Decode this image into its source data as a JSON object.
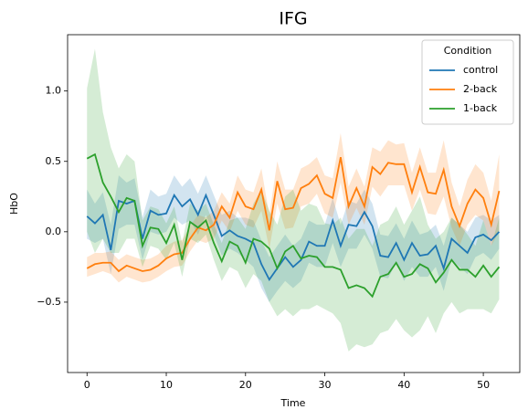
{
  "chart_data": {
    "type": "line",
    "title": "IFG",
    "xlabel": "Time",
    "ylabel": "HbO",
    "legend_title": "Condition",
    "legend": "upper right",
    "band_opacity": 0.2,
    "xlim": [
      -2.45,
      54.6
    ],
    "ylim": [
      -1.0,
      1.4
    ],
    "xticks": [
      0,
      10,
      20,
      30,
      40,
      50
    ],
    "yticks": [
      {
        "value": -0.5,
        "label": "−0.5"
      },
      {
        "value": 0.0,
        "label": "0.0"
      },
      0.5,
      {
        "value": 1.0,
        "label": "1.0"
      }
    ],
    "x": [
      0,
      1,
      2,
      3,
      4,
      5,
      6,
      7,
      8,
      9,
      10,
      11,
      12,
      13,
      14,
      15,
      16,
      17,
      18,
      19,
      20,
      21,
      22,
      23,
      24,
      25,
      26,
      27,
      28,
      29,
      30,
      31,
      32,
      33,
      34,
      35,
      36,
      37,
      38,
      39,
      40,
      41,
      42,
      43,
      44,
      45,
      46,
      47,
      48,
      49,
      50,
      51,
      52
    ],
    "series": [
      {
        "name": "control",
        "color": "#1f77b4",
        "values": [
          0.11,
          0.06,
          0.12,
          -0.13,
          0.22,
          0.2,
          0.22,
          -0.05,
          0.15,
          0.12,
          0.13,
          0.26,
          0.18,
          0.23,
          0.12,
          0.26,
          0.12,
          -0.03,
          0.01,
          -0.03,
          -0.05,
          -0.08,
          -0.23,
          -0.34,
          -0.26,
          -0.18,
          -0.25,
          -0.2,
          -0.07,
          -0.1,
          -0.1,
          0.08,
          -0.1,
          0.05,
          0.04,
          0.14,
          0.04,
          -0.17,
          -0.18,
          -0.08,
          -0.2,
          -0.08,
          -0.17,
          -0.16,
          -0.1,
          -0.26,
          -0.05,
          -0.1,
          -0.15,
          -0.04,
          -0.02,
          -0.06,
          0.0
        ],
        "lower": [
          -0.05,
          -0.08,
          -0.05,
          -0.3,
          0.02,
          0.05,
          0.05,
          -0.2,
          0.0,
          -0.02,
          0.0,
          0.1,
          0.05,
          0.08,
          -0.02,
          0.12,
          -0.02,
          -0.17,
          -0.12,
          -0.15,
          -0.2,
          -0.25,
          -0.4,
          -0.5,
          -0.42,
          -0.35,
          -0.4,
          -0.35,
          -0.22,
          -0.25,
          -0.25,
          -0.08,
          -0.25,
          -0.12,
          -0.12,
          -0.02,
          -0.12,
          -0.32,
          -0.33,
          -0.22,
          -0.35,
          -0.25,
          -0.32,
          -0.32,
          -0.25,
          -0.42,
          -0.2,
          -0.25,
          -0.3,
          -0.18,
          -0.15,
          -0.2,
          -0.12
        ],
        "upper": [
          0.3,
          0.2,
          0.28,
          0.05,
          0.4,
          0.35,
          0.38,
          0.1,
          0.3,
          0.25,
          0.27,
          0.4,
          0.32,
          0.38,
          0.27,
          0.4,
          0.26,
          0.12,
          0.15,
          0.1,
          0.1,
          0.08,
          -0.06,
          -0.18,
          -0.1,
          -0.02,
          -0.1,
          -0.05,
          0.08,
          0.05,
          0.05,
          0.24,
          0.05,
          0.22,
          0.2,
          0.3,
          0.2,
          -0.02,
          -0.03,
          0.06,
          -0.05,
          0.08,
          -0.02,
          0.0,
          0.05,
          -0.1,
          0.1,
          0.05,
          0.0,
          0.1,
          0.12,
          0.08,
          0.12
        ]
      },
      {
        "name": "2-back",
        "color": "#ff7f0e",
        "values": [
          -0.26,
          -0.23,
          -0.22,
          -0.22,
          -0.28,
          -0.24,
          -0.26,
          -0.28,
          -0.27,
          -0.24,
          -0.19,
          -0.16,
          -0.15,
          -0.05,
          0.03,
          0.01,
          0.05,
          0.18,
          0.1,
          0.28,
          0.18,
          0.16,
          0.3,
          0.01,
          0.36,
          0.16,
          0.17,
          0.31,
          0.34,
          0.4,
          0.27,
          0.24,
          0.53,
          0.18,
          0.31,
          0.18,
          0.46,
          0.41,
          0.49,
          0.48,
          0.48,
          0.28,
          0.46,
          0.28,
          0.27,
          0.44,
          0.18,
          0.04,
          0.2,
          0.3,
          0.24,
          0.05,
          0.29
        ],
        "lower": [
          -0.32,
          -0.3,
          -0.28,
          -0.3,
          -0.36,
          -0.32,
          -0.34,
          -0.36,
          -0.35,
          -0.32,
          -0.28,
          -0.25,
          -0.24,
          -0.14,
          -0.06,
          -0.08,
          -0.05,
          0.08,
          0.0,
          0.15,
          0.05,
          0.03,
          0.15,
          -0.12,
          0.2,
          0.02,
          0.03,
          0.18,
          0.2,
          0.27,
          0.13,
          0.1,
          0.35,
          0.05,
          0.17,
          0.05,
          0.32,
          0.25,
          0.33,
          0.33,
          0.33,
          0.15,
          0.3,
          0.13,
          0.12,
          0.25,
          0.03,
          -0.1,
          0.05,
          0.12,
          0.08,
          -0.1,
          0.0
        ],
        "upper": [
          -0.18,
          -0.15,
          -0.15,
          -0.14,
          -0.2,
          -0.16,
          -0.18,
          -0.2,
          -0.19,
          -0.16,
          -0.1,
          -0.07,
          -0.06,
          0.04,
          0.12,
          0.1,
          0.15,
          0.28,
          0.2,
          0.4,
          0.3,
          0.28,
          0.45,
          0.12,
          0.5,
          0.3,
          0.3,
          0.45,
          0.48,
          0.53,
          0.4,
          0.38,
          0.7,
          0.32,
          0.45,
          0.32,
          0.6,
          0.57,
          0.65,
          0.62,
          0.63,
          0.42,
          0.6,
          0.42,
          0.42,
          0.65,
          0.35,
          0.18,
          0.37,
          0.48,
          0.42,
          0.22,
          0.55
        ]
      },
      {
        "name": "1-back",
        "color": "#2ca02c",
        "values": [
          0.52,
          0.55,
          0.35,
          0.25,
          0.14,
          0.24,
          0.22,
          -0.1,
          0.03,
          0.02,
          -0.08,
          0.05,
          -0.2,
          0.07,
          0.03,
          0.08,
          -0.08,
          -0.21,
          -0.07,
          -0.1,
          -0.22,
          -0.05,
          -0.07,
          -0.12,
          -0.26,
          -0.14,
          -0.1,
          -0.19,
          -0.17,
          -0.18,
          -0.25,
          -0.25,
          -0.27,
          -0.4,
          -0.38,
          -0.4,
          -0.46,
          -0.32,
          -0.3,
          -0.22,
          -0.32,
          -0.3,
          -0.23,
          -0.26,
          -0.36,
          -0.29,
          -0.2,
          -0.27,
          -0.27,
          -0.32,
          -0.24,
          -0.32,
          -0.25
        ],
        "lower": [
          0.0,
          -0.15,
          -0.05,
          -0.15,
          -0.15,
          -0.05,
          -0.05,
          -0.25,
          -0.1,
          -0.12,
          -0.2,
          -0.08,
          -0.32,
          -0.05,
          -0.08,
          -0.02,
          -0.2,
          -0.35,
          -0.25,
          -0.28,
          -0.4,
          -0.3,
          -0.35,
          -0.5,
          -0.6,
          -0.55,
          -0.6,
          -0.55,
          -0.55,
          -0.52,
          -0.55,
          -0.58,
          -0.65,
          -0.85,
          -0.8,
          -0.82,
          -0.8,
          -0.72,
          -0.7,
          -0.62,
          -0.7,
          -0.75,
          -0.7,
          -0.6,
          -0.72,
          -0.58,
          -0.5,
          -0.58,
          -0.55,
          -0.55,
          -0.55,
          -0.58,
          -0.48
        ],
        "upper": [
          1.02,
          1.3,
          0.85,
          0.6,
          0.45,
          0.55,
          0.5,
          0.08,
          0.18,
          0.16,
          0.06,
          0.18,
          -0.08,
          0.2,
          0.15,
          0.2,
          0.05,
          -0.08,
          0.08,
          0.1,
          0.02,
          0.2,
          0.3,
          0.15,
          0.05,
          0.25,
          0.3,
          0.15,
          0.2,
          0.18,
          0.06,
          0.05,
          0.1,
          -0.05,
          0.02,
          0.02,
          -0.1,
          0.05,
          0.08,
          0.18,
          0.05,
          0.15,
          0.25,
          0.05,
          -0.05,
          0.0,
          0.1,
          0.05,
          -0.02,
          -0.1,
          0.08,
          -0.1,
          0.1
        ]
      }
    ]
  }
}
